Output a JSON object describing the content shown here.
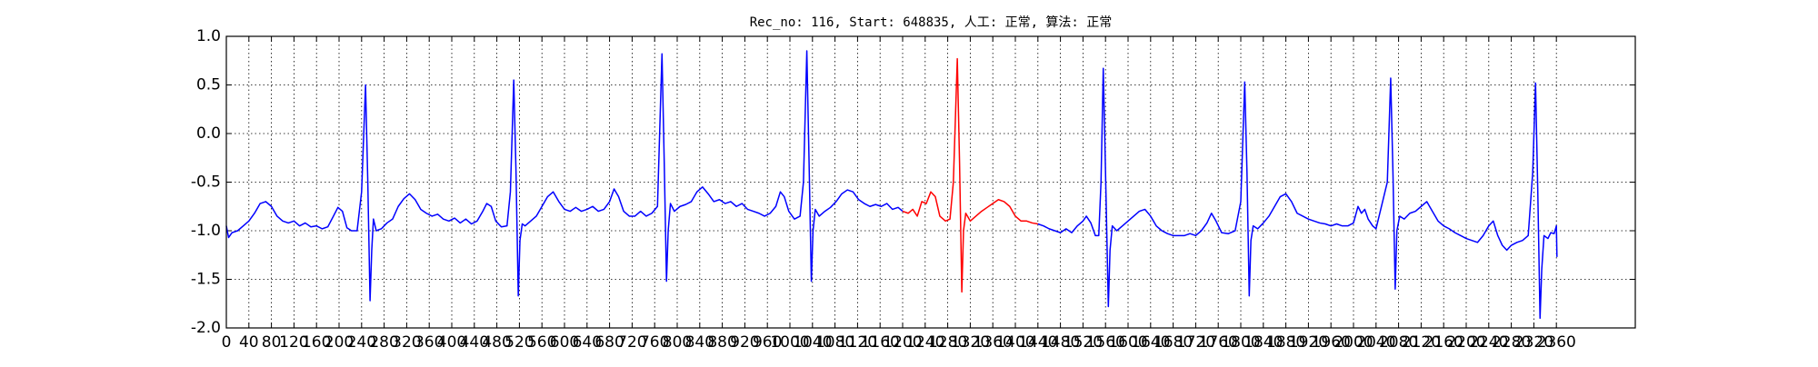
{
  "chart_data": {
    "type": "line",
    "title": "Rec_no: 116, Start: 648835, 人工: 正常, 算法: 正常",
    "xlim": [
      0,
      2500
    ],
    "ylim": [
      -2,
      1
    ],
    "xticks": [
      0,
      40,
      80,
      120,
      160,
      200,
      240,
      280,
      320,
      360,
      400,
      440,
      480,
      520,
      560,
      600,
      640,
      680,
      720,
      760,
      800,
      840,
      880,
      920,
      960,
      1000,
      1040,
      1080,
      1120,
      1160,
      1200,
      1240,
      1280,
      1320,
      1360,
      1400,
      1440,
      1480,
      1520,
      1560,
      1600,
      1640,
      1680,
      1720,
      1760,
      1800,
      1840,
      1880,
      1920,
      1960,
      2000,
      2040,
      2080,
      2120,
      2160,
      2200,
      2240,
      2280,
      2320,
      2360
    ],
    "yticks": [
      {
        "value": -2,
        "label": "-2.0"
      },
      -1.5,
      {
        "value": -1,
        "label": "-1.0"
      },
      -0.5,
      {
        "value": 0,
        "label": "0.0"
      },
      0.5,
      {
        "value": 1,
        "label": "1.0"
      }
    ],
    "grid": true,
    "series": [
      {
        "color": "#0000ff",
        "x": [
          0,
          4,
          10,
          20,
          30,
          40,
          50,
          60,
          70,
          80,
          90,
          100,
          110,
          120,
          130,
          140,
          150,
          160,
          170,
          180,
          190,
          198,
          206,
          214,
          222,
          232,
          240,
          247,
          251,
          255,
          258,
          261,
          266,
          275,
          285,
          295,
          305,
          315,
          325,
          335,
          345,
          355,
          365,
          375,
          385,
          395,
          405,
          415,
          425,
          435,
          445,
          455,
          462,
          470,
          478,
          488,
          498,
          504,
          510,
          514,
          518,
          521,
          525,
          530,
          540,
          550,
          560,
          570,
          580,
          590,
          600,
          610,
          620,
          630,
          640,
          650,
          660,
          670,
          680,
          688,
          696,
          705,
          715,
          725,
          735,
          745,
          755,
          765,
          773,
          777,
          781,
          784,
          788,
          795,
          805,
          815,
          825,
          835,
          845,
          855,
          865,
          875,
          885,
          895,
          905,
          915,
          925,
          935,
          945,
          955,
          965,
          975,
          983,
          990,
          998,
          1008,
          1018,
          1024,
          1030,
          1034,
          1038,
          1041,
          1045,
          1052,
          1062,
          1072,
          1082,
          1092,
          1102,
          1112,
          1122,
          1132,
          1142,
          1152,
          1162,
          1172,
          1182,
          1192,
          1200,
          1320,
          1440,
          1450,
          1460,
          1470,
          1480,
          1490,
          1500,
          1510,
          1520,
          1526,
          1534,
          1542,
          1548,
          1552,
          1556,
          1560,
          1565,
          1568,
          1572,
          1580,
          1590,
          1600,
          1610,
          1620,
          1630,
          1640,
          1650,
          1660,
          1670,
          1680,
          1690,
          1700,
          1710,
          1720,
          1730,
          1740,
          1748,
          1756,
          1766,
          1778,
          1790,
          1800,
          1807,
          1811,
          1815,
          1818,
          1822,
          1830,
          1840,
          1850,
          1860,
          1870,
          1880,
          1890,
          1900,
          1910,
          1920,
          1930,
          1940,
          1950,
          1960,
          1970,
          1980,
          1990,
          2000,
          2008,
          2014,
          2020,
          2026,
          2034,
          2040,
          2060,
          2066,
          2070,
          2074,
          2077,
          2082,
          2090,
          2100,
          2110,
          2120,
          2130,
          2140,
          2150,
          2160,
          2170,
          2180,
          2190,
          2200,
          2210,
          2220,
          2230,
          2240,
          2248,
          2256,
          2264,
          2272,
          2280,
          2290,
          2300,
          2310,
          2318,
          2323,
          2327,
          2331,
          2334,
          2338,
          2345,
          2350,
          2356,
          2360,
          2361
        ],
        "values": [
          -0.95,
          -1.07,
          -1.02,
          -1.0,
          -0.95,
          -0.9,
          -0.82,
          -0.72,
          -0.7,
          -0.75,
          -0.85,
          -0.9,
          -0.92,
          -0.9,
          -0.95,
          -0.92,
          -0.96,
          -0.95,
          -0.98,
          -0.96,
          -0.85,
          -0.76,
          -0.8,
          -0.97,
          -1.0,
          -1.0,
          -0.6,
          0.5,
          -0.5,
          -1.72,
          -1.2,
          -0.88,
          -1.0,
          -0.98,
          -0.92,
          -0.88,
          -0.75,
          -0.67,
          -0.62,
          -0.68,
          -0.78,
          -0.82,
          -0.85,
          -0.83,
          -0.88,
          -0.9,
          -0.87,
          -0.92,
          -0.88,
          -0.93,
          -0.9,
          -0.8,
          -0.72,
          -0.75,
          -0.9,
          -0.96,
          -0.95,
          -0.6,
          0.55,
          -0.4,
          -1.67,
          -1.1,
          -0.93,
          -0.95,
          -0.9,
          -0.85,
          -0.75,
          -0.65,
          -0.6,
          -0.7,
          -0.78,
          -0.8,
          -0.76,
          -0.8,
          -0.78,
          -0.75,
          -0.8,
          -0.78,
          -0.7,
          -0.57,
          -0.65,
          -0.8,
          -0.85,
          -0.85,
          -0.8,
          -0.85,
          -0.82,
          -0.75,
          0.82,
          -0.3,
          -1.52,
          -1.0,
          -0.72,
          -0.8,
          -0.75,
          -0.73,
          -0.7,
          -0.6,
          -0.55,
          -0.62,
          -0.7,
          -0.68,
          -0.72,
          -0.7,
          -0.75,
          -0.72,
          -0.78,
          -0.8,
          -0.82,
          -0.85,
          -0.82,
          -0.75,
          -0.6,
          -0.65,
          -0.8,
          -0.88,
          -0.85,
          -0.5,
          0.85,
          -0.3,
          -1.52,
          -1.0,
          -0.78,
          -0.85,
          -0.8,
          -0.76,
          -0.7,
          -0.62,
          -0.58,
          -0.6,
          -0.68,
          -0.72,
          -0.75,
          -0.73,
          -0.75,
          -0.72,
          -0.78,
          -0.76,
          -0.8,
          null,
          -0.93,
          -0.95,
          -0.98,
          -1.0,
          -1.02,
          -0.98,
          -1.02,
          -0.95,
          -0.9,
          -0.85,
          -0.92,
          -1.05,
          -1.05,
          -0.5,
          0.67,
          -0.4,
          -1.78,
          -1.2,
          -0.95,
          -1.0,
          -0.95,
          -0.9,
          -0.85,
          -0.8,
          -0.78,
          -0.85,
          -0.95,
          -1.0,
          -1.03,
          -1.05,
          -1.05,
          -1.05,
          -1.03,
          -1.05,
          -1.0,
          -0.92,
          -0.82,
          -0.9,
          -1.02,
          -1.03,
          -1.0,
          -0.7,
          0.53,
          -0.4,
          -1.67,
          -1.1,
          -0.95,
          -0.98,
          -0.92,
          -0.85,
          -0.75,
          -0.65,
          -0.62,
          -0.7,
          -0.82,
          -0.85,
          -0.88,
          -0.9,
          -0.92,
          -0.93,
          -0.95,
          -0.93,
          -0.95,
          -0.95,
          -0.92,
          -0.75,
          -0.82,
          -0.78,
          -0.88,
          -0.95,
          -0.98,
          -0.5,
          0.57,
          -0.4,
          -1.6,
          -1.0,
          -0.85,
          -0.88,
          -0.82,
          -0.8,
          -0.75,
          -0.7,
          -0.8,
          -0.9,
          -0.95,
          -0.98,
          -1.02,
          -1.05,
          -1.08,
          -1.1,
          -1.12,
          -1.05,
          -0.95,
          -0.9,
          -1.05,
          -1.15,
          -1.2,
          -1.15,
          -1.12,
          -1.1,
          -1.05,
          -0.4,
          0.52,
          -0.6,
          -1.9,
          -1.4,
          -1.05,
          -1.08,
          -1.02,
          -1.03,
          -0.95,
          -1.27
        ]
      },
      {
        "color": "#ff0000",
        "x": [
          1200,
          1210,
          1218,
          1226,
          1234,
          1242,
          1250,
          1258,
          1266,
          1276,
          1284,
          1290,
          1297,
          1301,
          1305,
          1308,
          1312,
          1320,
          1330,
          1340,
          1350,
          1360,
          1370,
          1380,
          1390,
          1400,
          1410,
          1420,
          1430,
          1440
        ],
        "values": [
          -0.8,
          -0.82,
          -0.78,
          -0.85,
          -0.7,
          -0.72,
          -0.6,
          -0.65,
          -0.85,
          -0.9,
          -0.88,
          -0.5,
          0.77,
          -0.3,
          -1.63,
          -1.0,
          -0.82,
          -0.9,
          -0.85,
          -0.8,
          -0.76,
          -0.72,
          -0.68,
          -0.7,
          -0.75,
          -0.85,
          -0.9,
          -0.9,
          -0.92,
          -0.93
        ]
      }
    ]
  }
}
